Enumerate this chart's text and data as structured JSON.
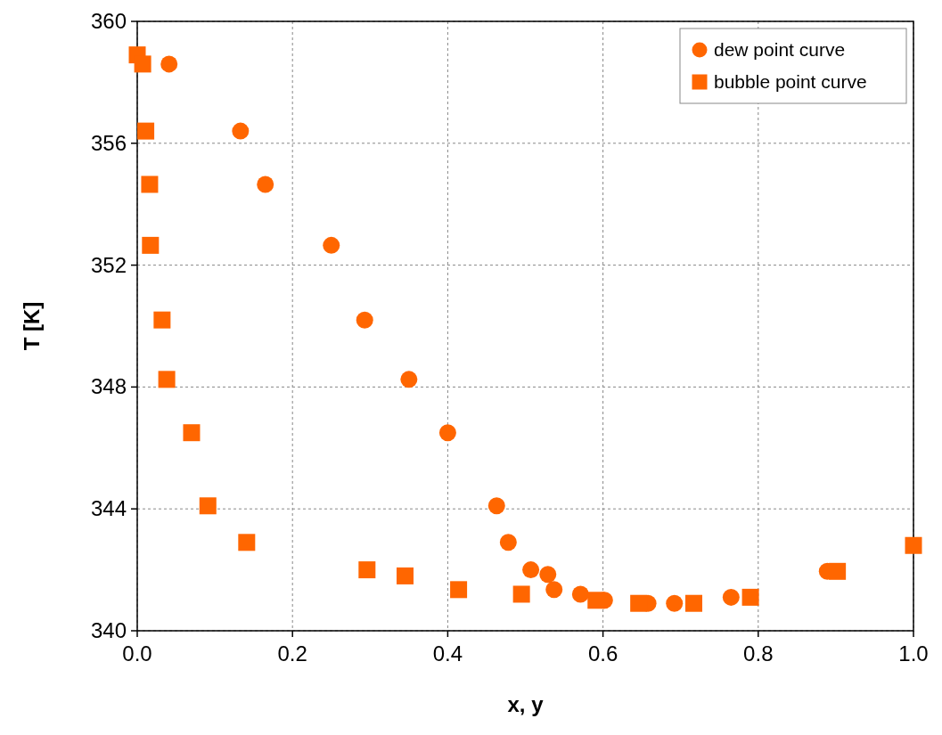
{
  "chart_data": {
    "type": "scatter",
    "xlabel": "x, y",
    "ylabel": "T [K]",
    "xlim": [
      0,
      1
    ],
    "ylim": [
      340,
      360
    ],
    "xticks": [
      {
        "value": 0,
        "label": "0.0"
      },
      {
        "value": 0.2,
        "label": "0.2"
      },
      {
        "value": 0.4,
        "label": "0.4"
      },
      {
        "value": 0.6,
        "label": "0.6"
      },
      {
        "value": 0.8,
        "label": "0.8"
      },
      {
        "value": 1,
        "label": "1.0"
      }
    ],
    "yticks": [
      340,
      344,
      348,
      352,
      356,
      360
    ],
    "grid": true,
    "legend": "top right",
    "series": [
      {
        "name": "dew point curve",
        "color": "#ff6600",
        "marker": "circle",
        "x": [
          0.041,
          0.133,
          0.165,
          0.25,
          0.293,
          0.35,
          0.4,
          0.463,
          0.478,
          0.507,
          0.529,
          0.537,
          0.571,
          0.602,
          0.658,
          0.692,
          0.765,
          0.889
        ],
        "values": [
          358.6,
          356.4,
          354.65,
          352.65,
          350.2,
          348.25,
          346.5,
          344.1,
          342.9,
          342.0,
          341.85,
          341.35,
          341.2,
          341.0,
          340.9,
          340.9,
          341.1,
          341.95
        ]
      },
      {
        "name": "bubble point curve",
        "color": "#ff6600",
        "marker": "square",
        "x": [
          0,
          0.007,
          0.011,
          0.016,
          0.017,
          0.032,
          0.038,
          0.07,
          0.091,
          0.141,
          0.296,
          0.345,
          0.414,
          0.495,
          0.591,
          0.646,
          0.717,
          0.79,
          0.902,
          1.0
        ],
        "values": [
          358.9,
          358.6,
          356.4,
          354.65,
          352.65,
          350.2,
          348.25,
          346.5,
          344.1,
          342.9,
          342.0,
          341.8,
          341.35,
          341.2,
          341.0,
          340.9,
          340.9,
          341.1,
          341.95,
          342.8
        ]
      }
    ]
  }
}
